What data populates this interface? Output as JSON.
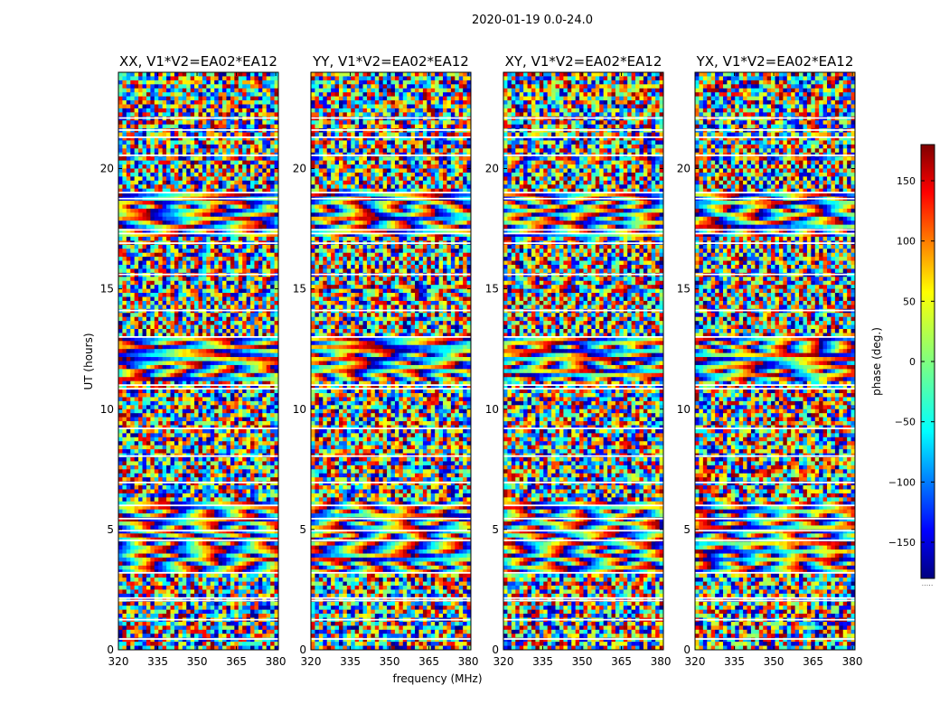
{
  "figure": {
    "suptitle": "2020-01-19 0.0-24.0",
    "xlabel": "frequency (MHz)",
    "ylabel": "UT (hours)"
  },
  "chart_data": {
    "type": "heatmap",
    "title": "2020-01-19 0.0-24.0",
    "xlabel": "frequency (MHz)",
    "ylabel": "UT (hours)",
    "xlim": [
      320,
      381
    ],
    "ylim": [
      0,
      24
    ],
    "x_ticks": [
      "320",
      "335",
      "350",
      "365",
      "380"
    ],
    "x_tick_values": [
      320,
      335,
      350,
      365,
      380
    ],
    "y_ticks": [
      "0",
      "5",
      "10",
      "15",
      "20"
    ],
    "y_tick_values": [
      0,
      5,
      10,
      15,
      20
    ],
    "colormap": "jet",
    "panels": [
      {
        "title": "XX, V1*V2=EA02*EA12"
      },
      {
        "title": "YY, V1*V2=EA02*EA12"
      },
      {
        "title": "XY, V1*V2=EA02*EA12"
      },
      {
        "title": "YX, V1*V2=EA02*EA12"
      }
    ],
    "flagged_hours": [
      0.45,
      1.25,
      2.05,
      2.15,
      3.2,
      4.55,
      4.95,
      5.45,
      6.0,
      6.95,
      8.05,
      9.2,
      10.85,
      11.0,
      13.0,
      14.1,
      15.6,
      16.9,
      17.3,
      17.45,
      18.75,
      19.0,
      20.55,
      21.3,
      21.6,
      22.1
    ],
    "colorbar": {
      "label": "phase (deg.)",
      "range": [
        -180,
        180
      ],
      "ticks": [
        "150",
        "100",
        "50",
        "0",
        "−50",
        "−100",
        "−150"
      ],
      "tick_values": [
        150,
        100,
        50,
        0,
        -50,
        -100,
        -150
      ],
      "bottom_label": "....."
    }
  }
}
